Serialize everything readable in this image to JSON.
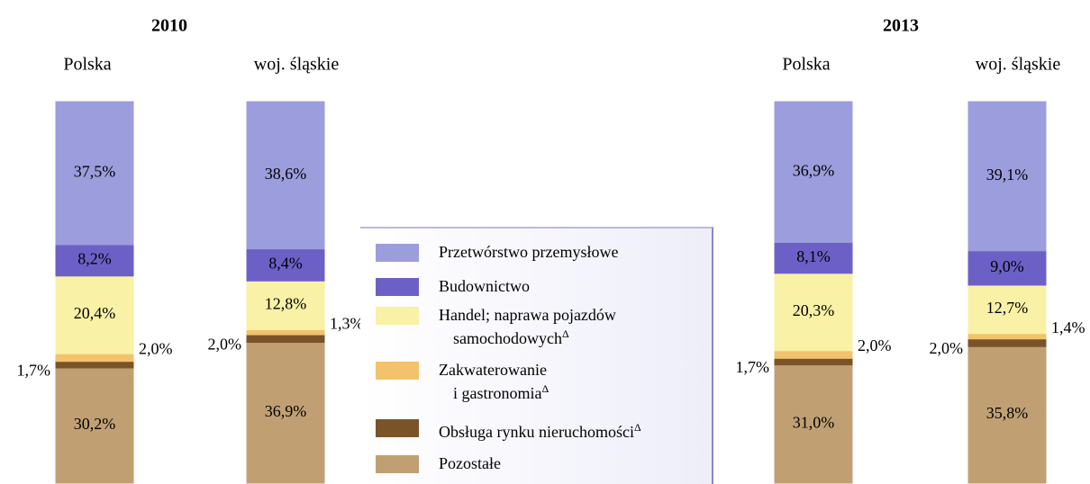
{
  "chart_data": {
    "type": "stacked_bar_100",
    "group_labels": [
      "2010",
      "2013"
    ],
    "categories": [
      "Polska",
      "woj. śląskie",
      "Polska",
      "woj. śląskie"
    ],
    "ylim": [
      0,
      100
    ],
    "series": [
      {
        "name": "Przetwórstwo przemysłowe",
        "color": "#9c9ddd",
        "values": [
          37.5,
          38.6,
          36.9,
          39.1
        ],
        "value_labels": [
          "37,5%",
          "38,6%",
          "36,9%",
          "39,1%"
        ]
      },
      {
        "name": "Budownictwo",
        "color": "#6c60c6",
        "values": [
          8.2,
          8.4,
          8.1,
          9.0
        ],
        "value_labels": [
          "8,2%",
          "8,4%",
          "8,1%",
          "9,0%"
        ]
      },
      {
        "name": "Handel; naprawa pojazdów\nsamochodowychΔ",
        "color": "#f8f1a6",
        "values": [
          20.4,
          12.8,
          20.3,
          12.7
        ],
        "value_labels": [
          "20,4%",
          "12,8%",
          "20,3%",
          "12,7%"
        ]
      },
      {
        "name": "Zakwaterowanie\ni gastronomiaΔ",
        "color": "#f2c36c",
        "values": [
          2.0,
          1.3,
          2.0,
          1.4
        ],
        "value_labels": [
          "2,0%",
          "1,3%",
          "2,0%",
          "1,4%"
        ]
      },
      {
        "name": "Obsługa rynku nieruchomościΔ",
        "color": "#7a5329",
        "values": [
          1.7,
          2.0,
          1.7,
          2.0
        ],
        "value_labels": [
          "1,7%",
          "2,0%",
          "1,7%",
          "2,0%"
        ]
      },
      {
        "name": "Pozostałe",
        "color": "#c0a073",
        "values": [
          30.2,
          36.9,
          31.0,
          35.8
        ],
        "value_labels": [
          "30,2%",
          "36,9%",
          "31,0%",
          "35,8%"
        ]
      }
    ]
  }
}
